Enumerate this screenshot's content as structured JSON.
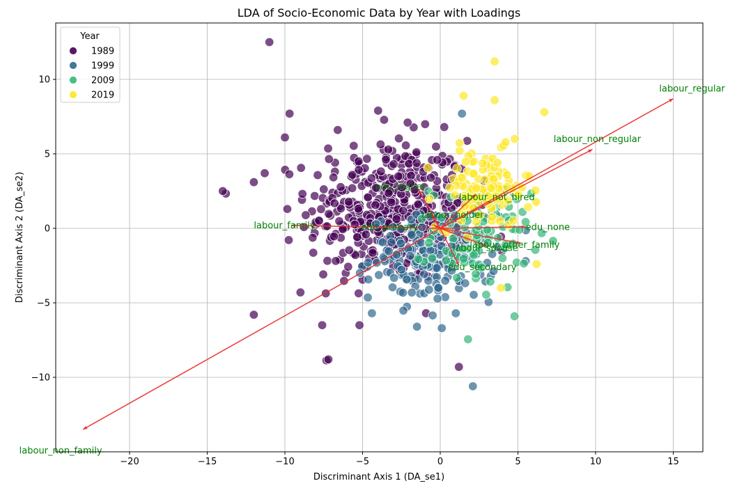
{
  "chart_data": {
    "type": "scatter",
    "title": "LDA of Socio-Economic Data by Year with Loadings",
    "xlabel": "Discriminant Axis 1 (DA_se1)",
    "ylabel": "Discriminant Axis 2 (DA_se2)",
    "xlim": [
      -25,
      17
    ],
    "ylim": [
      -15,
      14
    ],
    "x_ticks": [
      -20,
      -15,
      -10,
      -5,
      0,
      5,
      10,
      15
    ],
    "y_ticks": [
      -10,
      -5,
      0,
      5,
      10
    ],
    "x_tick_labels": [
      "−20",
      "−15",
      "−10",
      "−5",
      "0",
      "5",
      "10",
      "15"
    ],
    "y_tick_labels": [
      "−10",
      "−5",
      "0",
      "5",
      "10"
    ],
    "grid": true,
    "legend": {
      "title": "Year",
      "placement": "upper-left",
      "entries": [
        "1989",
        "1999",
        "2009",
        "2019"
      ]
    },
    "series": [
      {
        "name": "1989",
        "color": "#440154",
        "cluster": {
          "cx": -3.3,
          "cy": 1.2,
          "sx": 2.6,
          "sy": 2.4,
          "n": 420
        },
        "outliers": [
          [
            -11.0,
            12.5
          ],
          [
            -14.0,
            2.5
          ],
          [
            -12.0,
            -5.8
          ],
          [
            -7.2,
            -8.8
          ],
          [
            1.2,
            -9.3
          ],
          [
            -10.0,
            6.1
          ],
          [
            -9.7,
            7.7
          ],
          [
            -4.0,
            7.9
          ],
          [
            -2.1,
            7.1
          ],
          [
            -6.6,
            6.6
          ],
          [
            -5.2,
            -6.5
          ],
          [
            -7.6,
            -6.5
          ],
          [
            -11.3,
            3.7
          ],
          [
            -12.0,
            3.1
          ],
          [
            -9.0,
            -4.3
          ]
        ]
      },
      {
        "name": "1999",
        "color": "#31688e",
        "cluster": {
          "cx": -0.5,
          "cy": -2.0,
          "sx": 2.0,
          "sy": 1.4,
          "n": 180
        },
        "outliers": [
          [
            1.4,
            7.7
          ],
          [
            2.1,
            -10.6
          ],
          [
            0.1,
            -6.7
          ],
          [
            -1.5,
            -6.6
          ],
          [
            1.0,
            -5.7
          ],
          [
            -4.4,
            -5.7
          ]
        ]
      },
      {
        "name": "2009",
        "color": "#35b779",
        "cluster": {
          "cx": 2.6,
          "cy": -0.5,
          "sx": 1.6,
          "sy": 1.8,
          "n": 90
        },
        "outliers": [
          [
            5.3,
            1.1
          ],
          [
            5.1,
            -0.1
          ],
          [
            4.2,
            -1.1
          ]
        ]
      },
      {
        "name": "2019",
        "color": "#fde725",
        "cluster": {
          "cx": 2.8,
          "cy": 2.6,
          "sx": 1.5,
          "sy": 1.3,
          "n": 120
        },
        "outliers": [
          [
            3.5,
            11.2
          ],
          [
            1.5,
            8.9
          ],
          [
            3.5,
            8.6
          ],
          [
            6.7,
            7.8
          ],
          [
            6.2,
            -2.4
          ],
          [
            3.9,
            -4.0
          ],
          [
            4.8,
            6.0
          ]
        ]
      }
    ],
    "loadings": [
      {
        "name": "labour_regular",
        "x": 15.0,
        "y": 8.7,
        "lx": 14.1,
        "ly": 9.4
      },
      {
        "name": "labour_non_regular",
        "x": 9.8,
        "y": 5.3,
        "lx": 7.3,
        "ly": 6.0
      },
      {
        "name": "labour_non_family",
        "x": -23.0,
        "y": -13.5,
        "lx": -27.1,
        "ly": -14.9
      },
      {
        "name": "labour_family",
        "x": -9.6,
        "y": 0.2,
        "lx": -12.0,
        "ly": 0.2
      },
      {
        "name": "labour_not_hired",
        "x": 2.3,
        "y": 2.3,
        "lx": 1.2,
        "ly": 2.1
      },
      {
        "name": "labour_other_family",
        "x": 5.2,
        "y": -1.0,
        "lx": 1.9,
        "ly": -1.1
      },
      {
        "name": "labour_spouse",
        "x": 3.0,
        "y": -1.2,
        "lx": 0.8,
        "ly": -1.3
      },
      {
        "name": "edu_none",
        "x": 5.5,
        "y": 0.1,
        "lx": 5.5,
        "ly": 0.1
      },
      {
        "name": "edu_secondary",
        "x": 1.2,
        "y": -2.5,
        "lx": 0.5,
        "ly": -2.6
      },
      {
        "name": "edu_higher",
        "x": -1.4,
        "y": 2.6,
        "lx": -4.2,
        "ly": 2.8
      },
      {
        "name": "labour_holder",
        "x": -0.6,
        "y": 0.9,
        "lx": -1.2,
        "ly": 0.9
      },
      {
        "name": "edu_primary",
        "x": -0.4,
        "y": 0.2,
        "lx": -5.1,
        "ly": 0.1
      }
    ]
  }
}
